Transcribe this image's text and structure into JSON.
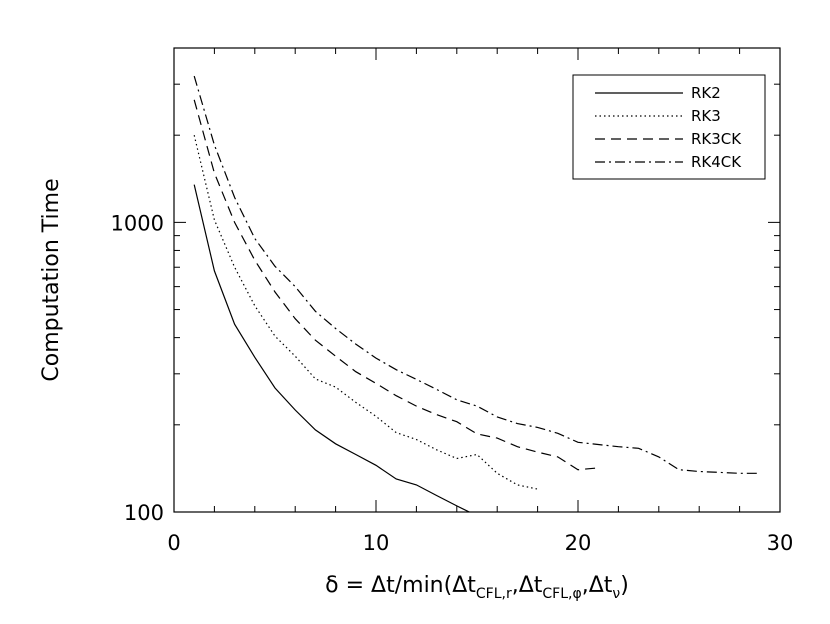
{
  "chart_data": {
    "type": "line",
    "ylabel": "Computation Time",
    "xlabel": {
      "prefix": "δ = Δt/min(Δt",
      "sub1": "CFL,r",
      "sep1": ",Δt",
      "sub2": "CFL,φ",
      "sep2": ",Δt",
      "sub3": "ν",
      "suffix": ")"
    },
    "xlim": [
      0,
      30
    ],
    "ylim": [
      100,
      4000
    ],
    "yscale": "log",
    "xticks": [
      0,
      10,
      20,
      30
    ],
    "xtick_labels": [
      "0",
      "10",
      "20",
      "30"
    ],
    "yticks": [
      100,
      1000
    ],
    "ytick_labels": [
      "100",
      "1000"
    ],
    "grid": false,
    "legend_position": "top-right",
    "series": [
      {
        "name": "RK2",
        "dash": "solid",
        "x": [
          1,
          2,
          3,
          4,
          5,
          6,
          7,
          8,
          9,
          10,
          11,
          12,
          13,
          14,
          15
        ],
        "y": [
          1350,
          680,
          445,
          342,
          268,
          225,
          192,
          172,
          158,
          145,
          130,
          124,
          114,
          105,
          97
        ]
      },
      {
        "name": "RK3",
        "dash": "dotted",
        "x": [
          1,
          2,
          3,
          4,
          5,
          6,
          7,
          8,
          9,
          10,
          11,
          12,
          13,
          14,
          15,
          16,
          17,
          18
        ],
        "y": [
          2000,
          1020,
          700,
          515,
          405,
          345,
          288,
          270,
          239,
          214,
          188,
          178,
          164,
          153,
          158,
          136,
          124,
          120
        ]
      },
      {
        "name": "RK3CK",
        "dash": "dashed",
        "x": [
          1,
          2,
          3,
          4,
          5,
          6,
          7,
          8,
          9,
          10,
          11,
          12,
          13,
          14,
          15,
          16,
          17,
          18,
          19,
          20,
          21
        ],
        "y": [
          2650,
          1480,
          1000,
          740,
          575,
          465,
          392,
          345,
          305,
          278,
          252,
          232,
          217,
          205,
          186,
          180,
          168,
          161,
          155,
          140,
          142
        ]
      },
      {
        "name": "RK4CK",
        "dash": "dashdot",
        "x": [
          1,
          2,
          3,
          4,
          5,
          6,
          7,
          8,
          9,
          10,
          11,
          12,
          13,
          14,
          15,
          16,
          17,
          18,
          19,
          20,
          21,
          22,
          23,
          24,
          25,
          26,
          27,
          28,
          29
        ],
        "y": [
          3200,
          1850,
          1220,
          880,
          705,
          600,
          493,
          430,
          380,
          340,
          310,
          287,
          265,
          244,
          232,
          213,
          202,
          196,
          187,
          174,
          171,
          168,
          166,
          155,
          140,
          138,
          137,
          136,
          136
        ]
      }
    ]
  }
}
